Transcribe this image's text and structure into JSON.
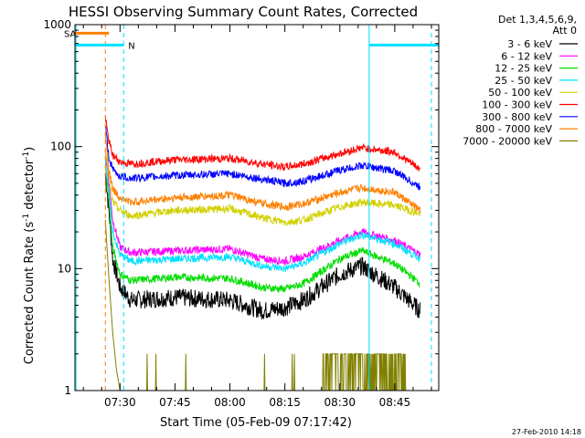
{
  "chart_data": {
    "type": "line",
    "title": "HESSI Observing Summary Count Rates, Corrected",
    "xlabel": "Start Time (05-Feb-09 07:17:42)",
    "ylabel": "Corrected Count Rate (s⁻¹ detector⁻¹)",
    "ylabel_main": "Corrected Count Rate (s",
    "ylabel_exp1": "-1",
    "ylabel_mid": " detector",
    "ylabel_exp2": "-1",
    "ylabel_end": ")",
    "yscale": "log",
    "ylim": [
      1,
      1000
    ],
    "xlim": [
      "07:17:42",
      "08:57:00"
    ],
    "x_ticks": [
      "07:30",
      "07:45",
      "08:00",
      "08:15",
      "08:30",
      "08:45"
    ],
    "y_ticks": [
      "1",
      "10",
      "100",
      "1000"
    ],
    "legend_header": [
      "Det 1,3,4,5,6,9,",
      "Att 0"
    ],
    "legend_position": "right",
    "series": [
      {
        "name": "3 - 6 keV",
        "color": "#000000",
        "x": [
          "07:26",
          "07:27",
          "07:28",
          "07:30",
          "07:33",
          "07:45",
          "08:00",
          "08:09",
          "08:15",
          "08:20",
          "08:30",
          "08:36",
          "08:45",
          "08:52"
        ],
        "y": [
          60,
          30,
          12,
          7,
          5.5,
          5.8,
          5.5,
          4.5,
          4.8,
          5.5,
          9,
          10.5,
          7,
          4.5
        ]
      },
      {
        "name": "6 - 12 keV",
        "color": "#ff00ff",
        "x": [
          "07:26",
          "07:27",
          "07:28",
          "07:30",
          "07:33",
          "07:45",
          "08:00",
          "08:09",
          "08:15",
          "08:20",
          "08:30",
          "08:36",
          "08:45",
          "08:52"
        ],
        "y": [
          90,
          50,
          25,
          15,
          13.5,
          14,
          14.5,
          12,
          11.5,
          12.5,
          17,
          20,
          17,
          13
        ]
      },
      {
        "name": "12 - 25 keV",
        "color": "#00dd00",
        "x": [
          "07:26",
          "07:27",
          "07:28",
          "07:30",
          "07:33",
          "07:45",
          "08:00",
          "08:09",
          "08:15",
          "08:20",
          "08:30",
          "08:36",
          "08:45",
          "08:52"
        ],
        "y": [
          70,
          35,
          15,
          9,
          8,
          8.5,
          8.3,
          7,
          6.8,
          7.5,
          12,
          14,
          11,
          7.5
        ]
      },
      {
        "name": "25 - 50 keV",
        "color": "#00e0ff",
        "x": [
          "07:26",
          "07:27",
          "07:28",
          "07:30",
          "07:33",
          "07:45",
          "08:00",
          "08:09",
          "08:15",
          "08:20",
          "08:30",
          "08:36",
          "08:45",
          "08:52"
        ],
        "y": [
          80,
          40,
          20,
          13,
          11.5,
          12,
          12.5,
          10.5,
          10,
          11,
          16,
          19,
          16,
          12
        ]
      },
      {
        "name": "50 - 100 keV",
        "color": "#d0d000",
        "x": [
          "07:26",
          "07:27",
          "07:28",
          "07:30",
          "07:33",
          "07:45",
          "08:00",
          "08:09",
          "08:15",
          "08:20",
          "08:30",
          "08:36",
          "08:45",
          "08:52"
        ],
        "y": [
          100,
          55,
          35,
          30,
          27,
          30,
          31,
          26,
          24,
          25,
          32,
          35,
          33,
          28
        ]
      },
      {
        "name": "100 - 300 keV",
        "color": "#ff0000",
        "x": [
          "07:26",
          "07:27",
          "07:28",
          "07:30",
          "07:33",
          "07:45",
          "08:00",
          "08:09",
          "08:15",
          "08:20",
          "08:30",
          "08:36",
          "08:45",
          "08:52"
        ],
        "y": [
          170,
          110,
          85,
          75,
          72,
          78,
          80,
          72,
          68,
          72,
          88,
          98,
          90,
          65
        ]
      },
      {
        "name": "300 - 800 keV",
        "color": "#0000ff",
        "x": [
          "07:26",
          "07:27",
          "07:28",
          "07:30",
          "07:33",
          "07:45",
          "08:00",
          "08:09",
          "08:15",
          "08:20",
          "08:30",
          "08:36",
          "08:45",
          "08:52"
        ],
        "y": [
          150,
          80,
          65,
          57,
          55,
          58,
          60,
          54,
          50,
          52,
          64,
          70,
          63,
          46
        ]
      },
      {
        "name": "800 - 7000 keV",
        "color": "#ff8000",
        "x": [
          "07:26",
          "07:27",
          "07:28",
          "07:30",
          "07:33",
          "07:45",
          "08:00",
          "08:09",
          "08:15",
          "08:20",
          "08:30",
          "08:36",
          "08:45",
          "08:52"
        ],
        "y": [
          130,
          65,
          45,
          38,
          35,
          38,
          40,
          34,
          32,
          34,
          42,
          46,
          42,
          30
        ]
      },
      {
        "name": "7000 - 20000 keV",
        "color": "#808000",
        "x": [
          "07:26",
          "07:27",
          "07:28",
          "07:29",
          "07:30",
          "07:32",
          "08:20",
          "08:27",
          "08:30",
          "08:36",
          "08:40",
          "08:44",
          "08:48"
        ],
        "y": [
          25,
          8,
          3,
          1.5,
          1,
          1,
          1,
          1.6,
          2,
          2,
          1.8,
          1.6,
          1
        ]
      }
    ],
    "annotations": {
      "segments": [
        {
          "label": "SA",
          "color": "#ff8000",
          "style": "solid",
          "x": [
            "07:17:42",
            "07:27"
          ],
          "y": 850
        },
        {
          "label": "N",
          "color": "#00e0ff",
          "style": "solid",
          "x": [
            "07:17:42",
            "07:31"
          ],
          "y": 680
        },
        {
          "label": "",
          "color": "#00e0ff",
          "style": "solid",
          "x": [
            "08:38",
            "08:57"
          ],
          "y": 680
        }
      ],
      "vlines": [
        {
          "x": "07:18",
          "color": "#00e0ff",
          "style": "solid"
        },
        {
          "x": "07:26",
          "color": "#ff8000",
          "style": "dashed"
        },
        {
          "x": "07:31",
          "color": "#00e0ff",
          "style": "dashed"
        },
        {
          "x": "08:38",
          "color": "#00e0ff",
          "style": "solid"
        },
        {
          "x": "08:55",
          "color": "#00e0ff",
          "style": "dashed"
        }
      ]
    },
    "footer": "27-Feb-2010 14:18"
  }
}
